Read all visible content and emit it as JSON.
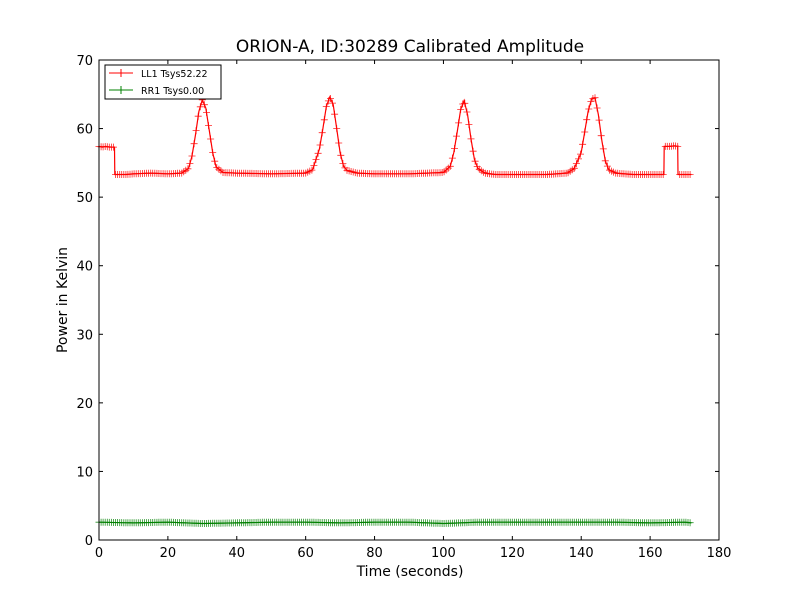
{
  "chart_data": {
    "type": "line",
    "title": "ORION-A, ID:30289 Calibrated Amplitude",
    "xlabel": "Time (seconds)",
    "ylabel": "Power in Kelvin",
    "xlim": [
      0,
      180
    ],
    "ylim": [
      0,
      70
    ],
    "xticks": [
      "0",
      "20",
      "40",
      "60",
      "80",
      "100",
      "120",
      "140",
      "160",
      "180"
    ],
    "yticks": [
      "0",
      "10",
      "20",
      "30",
      "40",
      "50",
      "60",
      "70"
    ],
    "grid": false,
    "legend_position": "top-left",
    "marker": "+",
    "series": [
      {
        "name": "LL1 Tsys52.22",
        "color": "#ff0000",
        "x": [
          0,
          1,
          2,
          3,
          4.5,
          4.6,
          6,
          8,
          10,
          15,
          20,
          24,
          26,
          27,
          28,
          29,
          30,
          31,
          32,
          33,
          34,
          36,
          40,
          50,
          60,
          62,
          64,
          65,
          66,
          67,
          68,
          69,
          70,
          71,
          72,
          75,
          80,
          90,
          100,
          102,
          103,
          104,
          105,
          106,
          107,
          108,
          109,
          110,
          112,
          115,
          120,
          130,
          136,
          138,
          140,
          141,
          142,
          143,
          144,
          145,
          146,
          147,
          148,
          150,
          155,
          160,
          164,
          164.1,
          165,
          166,
          167,
          168,
          168.1,
          170,
          172
        ],
        "y": [
          57.4,
          57.3,
          57.4,
          57.3,
          57.3,
          53.3,
          53.3,
          53.3,
          53.4,
          53.5,
          53.4,
          53.5,
          54.2,
          56.0,
          59.0,
          62.5,
          64.2,
          63.0,
          59.8,
          56.5,
          54.4,
          53.6,
          53.5,
          53.4,
          53.5,
          54.0,
          57.0,
          60.0,
          63.2,
          64.6,
          63.5,
          60.0,
          56.5,
          54.5,
          53.9,
          53.5,
          53.4,
          53.4,
          53.6,
          54.5,
          56.5,
          59.5,
          62.8,
          64.1,
          62.0,
          58.5,
          55.5,
          54.2,
          53.5,
          53.3,
          53.3,
          53.3,
          53.5,
          54.2,
          56.5,
          59.5,
          62.5,
          64.3,
          64.5,
          62.0,
          58.2,
          55.3,
          54.0,
          53.5,
          53.3,
          53.3,
          53.3,
          57.4,
          57.4,
          57.4,
          57.5,
          57.4,
          53.3,
          53.3,
          53.3
        ]
      },
      {
        "name": "RR1 Tsys0.00",
        "color": "#008000",
        "x": [
          0,
          10,
          20,
          30,
          40,
          50,
          60,
          70,
          80,
          90,
          100,
          110,
          120,
          130,
          140,
          150,
          160,
          170,
          172
        ],
        "y": [
          2.6,
          2.5,
          2.6,
          2.4,
          2.5,
          2.6,
          2.6,
          2.5,
          2.6,
          2.6,
          2.4,
          2.6,
          2.6,
          2.6,
          2.6,
          2.6,
          2.5,
          2.6,
          2.5
        ]
      }
    ]
  }
}
